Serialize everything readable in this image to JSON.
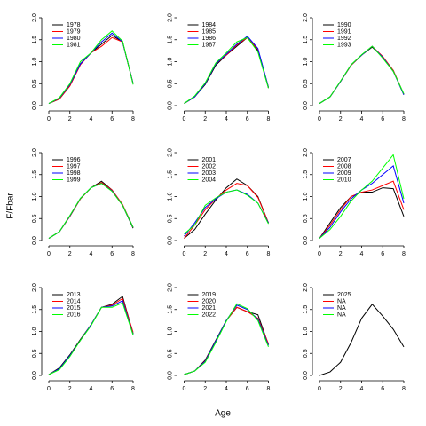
{
  "ylabel": "F/Fbar",
  "xlabel": "Age",
  "chart_data": [
    {
      "type": "line",
      "x": [
        0,
        1,
        2,
        3,
        4,
        5,
        6,
        7,
        8
      ],
      "xlim": [
        0,
        8
      ],
      "ylim": [
        0,
        2
      ],
      "xticks": [
        0,
        2,
        4,
        6,
        8
      ],
      "yticks": [
        {
          "value": 0,
          "label": "0.0"
        },
        0.5,
        {
          "value": 1,
          "label": "1.0"
        },
        1.5,
        {
          "value": 2,
          "label": "2.0"
        }
      ],
      "series": [
        {
          "name": "1978",
          "color": "#000000",
          "values": [
            0.05,
            0.15,
            0.45,
            0.95,
            1.2,
            1.4,
            1.6,
            1.45,
            0.5
          ]
        },
        {
          "name": "1979",
          "color": "#ff0000",
          "values": [
            0.05,
            0.15,
            0.45,
            0.93,
            1.2,
            1.35,
            1.55,
            1.45,
            0.5
          ]
        },
        {
          "name": "1980",
          "color": "#0000ff",
          "values": [
            0.05,
            0.17,
            0.48,
            0.95,
            1.2,
            1.45,
            1.65,
            1.45,
            0.5
          ]
        },
        {
          "name": "1981",
          "color": "#00ff00",
          "values": [
            0.05,
            0.18,
            0.5,
            1.0,
            1.2,
            1.5,
            1.7,
            1.47,
            0.48
          ]
        }
      ]
    },
    {
      "type": "line",
      "x": [
        0,
        1,
        2,
        3,
        4,
        5,
        6,
        7,
        8
      ],
      "xlim": [
        0,
        8
      ],
      "ylim": [
        0,
        2
      ],
      "xticks": [
        0,
        2,
        4,
        6,
        8
      ],
      "yticks": [
        {
          "value": 0,
          "label": "0.0"
        },
        0.5,
        {
          "value": 1,
          "label": "1.0"
        },
        1.5,
        {
          "value": 2,
          "label": "2.0"
        }
      ],
      "series": [
        {
          "name": "1984",
          "color": "#000000",
          "values": [
            0.05,
            0.2,
            0.48,
            0.92,
            1.15,
            1.35,
            1.55,
            1.25,
            0.4
          ]
        },
        {
          "name": "1985",
          "color": "#ff0000",
          "values": [
            0.05,
            0.2,
            0.5,
            0.95,
            1.15,
            1.38,
            1.55,
            1.28,
            0.42
          ]
        },
        {
          "name": "1986",
          "color": "#0000ff",
          "values": [
            0.05,
            0.2,
            0.5,
            0.95,
            1.17,
            1.4,
            1.58,
            1.3,
            0.42
          ]
        },
        {
          "name": "1987",
          "color": "#00ff00",
          "values": [
            0.05,
            0.22,
            0.52,
            0.97,
            1.2,
            1.45,
            1.55,
            1.22,
            0.4
          ]
        }
      ]
    },
    {
      "type": "line",
      "x": [
        0,
        1,
        2,
        3,
        4,
        5,
        6,
        7,
        8
      ],
      "xlim": [
        0,
        8
      ],
      "ylim": [
        0,
        2
      ],
      "xticks": [
        0,
        2,
        4,
        6,
        8
      ],
      "yticks": [
        {
          "value": 0,
          "label": "0.0"
        },
        0.5,
        {
          "value": 1,
          "label": "1.0"
        },
        1.5,
        {
          "value": 2,
          "label": "2.0"
        }
      ],
      "series": [
        {
          "name": "1990",
          "color": "#000000",
          "values": [
            0.05,
            0.2,
            0.55,
            0.92,
            1.15,
            1.33,
            1.1,
            0.8,
            0.25
          ]
        },
        {
          "name": "1991",
          "color": "#ff0000",
          "values": [
            0.05,
            0.2,
            0.55,
            0.92,
            1.15,
            1.35,
            1.12,
            0.8,
            0.26
          ]
        },
        {
          "name": "1992",
          "color": "#0000ff",
          "values": [
            0.05,
            0.2,
            0.55,
            0.93,
            1.15,
            1.35,
            1.1,
            0.78,
            0.25
          ]
        },
        {
          "name": "1993",
          "color": "#00ff00",
          "values": [
            0.05,
            0.2,
            0.56,
            0.93,
            1.16,
            1.35,
            1.08,
            0.78,
            0.27
          ]
        }
      ]
    },
    {
      "type": "line",
      "x": [
        0,
        1,
        2,
        3,
        4,
        5,
        6,
        7,
        8
      ],
      "xlim": [
        0,
        8
      ],
      "ylim": [
        0,
        2
      ],
      "xticks": [
        0,
        2,
        4,
        6,
        8
      ],
      "yticks": [
        {
          "value": 0,
          "label": "0.0"
        },
        0.5,
        {
          "value": 1,
          "label": "1.0"
        },
        1.5,
        {
          "value": 2,
          "label": "2.0"
        }
      ],
      "series": [
        {
          "name": "1996",
          "color": "#000000",
          "values": [
            0.05,
            0.2,
            0.55,
            0.95,
            1.2,
            1.35,
            1.15,
            0.8,
            0.28
          ]
        },
        {
          "name": "1997",
          "color": "#ff0000",
          "values": [
            0.05,
            0.2,
            0.55,
            0.95,
            1.2,
            1.32,
            1.15,
            0.82,
            0.3
          ]
        },
        {
          "name": "1998",
          "color": "#0000ff",
          "values": [
            0.05,
            0.2,
            0.56,
            0.96,
            1.2,
            1.3,
            1.13,
            0.8,
            0.3
          ]
        },
        {
          "name": "1999",
          "color": "#00ff00",
          "values": [
            0.05,
            0.2,
            0.57,
            0.96,
            1.2,
            1.3,
            1.12,
            0.8,
            0.3
          ]
        }
      ]
    },
    {
      "type": "line",
      "x": [
        0,
        1,
        2,
        3,
        4,
        5,
        6,
        7,
        8
      ],
      "xlim": [
        0,
        8
      ],
      "ylim": [
        0,
        2
      ],
      "xticks": [
        0,
        2,
        4,
        6,
        8
      ],
      "yticks": [
        {
          "value": 0,
          "label": "0.0"
        },
        0.5,
        {
          "value": 1,
          "label": "1.0"
        },
        1.5,
        {
          "value": 2,
          "label": "2.0"
        }
      ],
      "series": [
        {
          "name": "2001",
          "color": "#000000",
          "values": [
            0.05,
            0.25,
            0.6,
            0.92,
            1.2,
            1.4,
            1.25,
            1.0,
            0.4
          ]
        },
        {
          "name": "2002",
          "color": "#ff0000",
          "values": [
            0.05,
            0.35,
            0.7,
            0.95,
            1.15,
            1.3,
            1.25,
            0.98,
            0.4
          ]
        },
        {
          "name": "2003",
          "color": "#0000ff",
          "values": [
            0.1,
            0.4,
            0.75,
            0.95,
            1.1,
            1.15,
            1.05,
            0.85,
            0.4
          ]
        },
        {
          "name": "2004",
          "color": "#00ff00",
          "values": [
            0.15,
            0.35,
            0.8,
            0.97,
            1.1,
            1.15,
            1.03,
            0.85,
            0.38
          ]
        }
      ]
    },
    {
      "type": "line",
      "x": [
        0,
        1,
        2,
        3,
        4,
        5,
        6,
        7,
        8
      ],
      "xlim": [
        0,
        8
      ],
      "ylim": [
        0,
        2
      ],
      "xticks": [
        0,
        2,
        4,
        6,
        8
      ],
      "yticks": [
        {
          "value": 0,
          "label": "0.0"
        },
        0.5,
        {
          "value": 1,
          "label": "1.0"
        },
        1.5,
        {
          "value": 2,
          "label": "2.0"
        }
      ],
      "series": [
        {
          "name": "2007",
          "color": "#000000",
          "values": [
            0.05,
            0.4,
            0.75,
            1.0,
            1.1,
            1.1,
            1.2,
            1.18,
            0.55
          ]
        },
        {
          "name": "2008",
          "color": "#ff0000",
          "values": [
            0.05,
            0.35,
            0.7,
            1.0,
            1.1,
            1.15,
            1.25,
            1.35,
            0.7
          ]
        },
        {
          "name": "2009",
          "color": "#0000ff",
          "values": [
            0.05,
            0.3,
            0.65,
            0.95,
            1.15,
            1.3,
            1.5,
            1.7,
            0.85
          ]
        },
        {
          "name": "2010",
          "color": "#00ff00",
          "values": [
            0.05,
            0.25,
            0.55,
            0.9,
            1.15,
            1.35,
            1.65,
            1.95,
            0.95
          ]
        }
      ]
    },
    {
      "type": "line",
      "x": [
        0,
        1,
        2,
        3,
        4,
        5,
        6,
        7,
        8
      ],
      "xlim": [
        0,
        8
      ],
      "ylim": [
        0,
        2
      ],
      "xticks": [
        0,
        2,
        4,
        6,
        8
      ],
      "yticks": [
        {
          "value": 0,
          "label": "0.0"
        },
        0.5,
        {
          "value": 1,
          "label": "1.0"
        },
        1.5,
        {
          "value": 2,
          "label": "2.0"
        }
      ],
      "series": [
        {
          "name": "2013",
          "color": "#000000",
          "values": [
            0.02,
            0.17,
            0.47,
            0.82,
            1.15,
            1.55,
            1.62,
            1.8,
            0.95
          ]
        },
        {
          "name": "2014",
          "color": "#ff0000",
          "values": [
            0.02,
            0.15,
            0.45,
            0.8,
            1.15,
            1.55,
            1.6,
            1.75,
            0.98
          ]
        },
        {
          "name": "2015",
          "color": "#0000ff",
          "values": [
            0.02,
            0.15,
            0.45,
            0.8,
            1.15,
            1.55,
            1.58,
            1.7,
            0.93
          ]
        },
        {
          "name": "2016",
          "color": "#00ff00",
          "values": [
            0.02,
            0.13,
            0.43,
            0.8,
            1.13,
            1.55,
            1.55,
            1.65,
            0.92
          ]
        }
      ]
    },
    {
      "type": "line",
      "x": [
        0,
        1,
        2,
        3,
        4,
        5,
        6,
        7,
        8
      ],
      "xlim": [
        0,
        8
      ],
      "ylim": [
        0,
        2
      ],
      "xticks": [
        0,
        2,
        4,
        6,
        8
      ],
      "yticks": [
        {
          "value": 0,
          "label": "0.0"
        },
        0.5,
        {
          "value": 1,
          "label": "1.0"
        },
        1.5,
        {
          "value": 2,
          "label": "2.0"
        }
      ],
      "series": [
        {
          "name": "2019",
          "color": "#000000",
          "values": [
            0.02,
            0.1,
            0.35,
            0.8,
            1.25,
            1.55,
            1.45,
            1.38,
            0.7
          ]
        },
        {
          "name": "2020",
          "color": "#ff0000",
          "values": [
            0.02,
            0.1,
            0.33,
            0.78,
            1.25,
            1.55,
            1.45,
            1.3,
            0.72
          ]
        },
        {
          "name": "2021",
          "color": "#0000ff",
          "values": [
            0.02,
            0.1,
            0.32,
            0.78,
            1.25,
            1.6,
            1.5,
            1.28,
            0.68
          ]
        },
        {
          "name": "2022",
          "color": "#00ff00",
          "values": [
            0.02,
            0.1,
            0.3,
            0.75,
            1.23,
            1.63,
            1.52,
            1.25,
            0.65
          ]
        }
      ]
    },
    {
      "type": "line",
      "x": [
        0,
        1,
        2,
        3,
        4,
        5,
        6,
        7,
        8
      ],
      "xlim": [
        0,
        8
      ],
      "ylim": [
        0,
        2
      ],
      "xticks": [
        0,
        2,
        4,
        6,
        8
      ],
      "yticks": [
        {
          "value": 0,
          "label": "0.0"
        },
        0.5,
        {
          "value": 1,
          "label": "1.0"
        },
        1.5,
        {
          "value": 2,
          "label": "2.0"
        }
      ],
      "series": [
        {
          "name": "2025",
          "color": "#000000",
          "values": [
            0.0,
            0.08,
            0.3,
            0.75,
            1.3,
            1.62,
            1.35,
            1.05,
            0.65
          ]
        },
        {
          "name": "NA",
          "color": "#ff0000",
          "values": [
            null,
            null,
            null,
            null,
            null,
            null,
            null,
            null,
            null
          ]
        },
        {
          "name": "NA",
          "color": "#0000ff",
          "values": [
            null,
            null,
            null,
            null,
            null,
            null,
            null,
            null,
            null
          ]
        },
        {
          "name": "NA",
          "color": "#00ff00",
          "values": [
            null,
            null,
            null,
            null,
            null,
            null,
            null,
            null,
            null
          ]
        }
      ]
    }
  ]
}
